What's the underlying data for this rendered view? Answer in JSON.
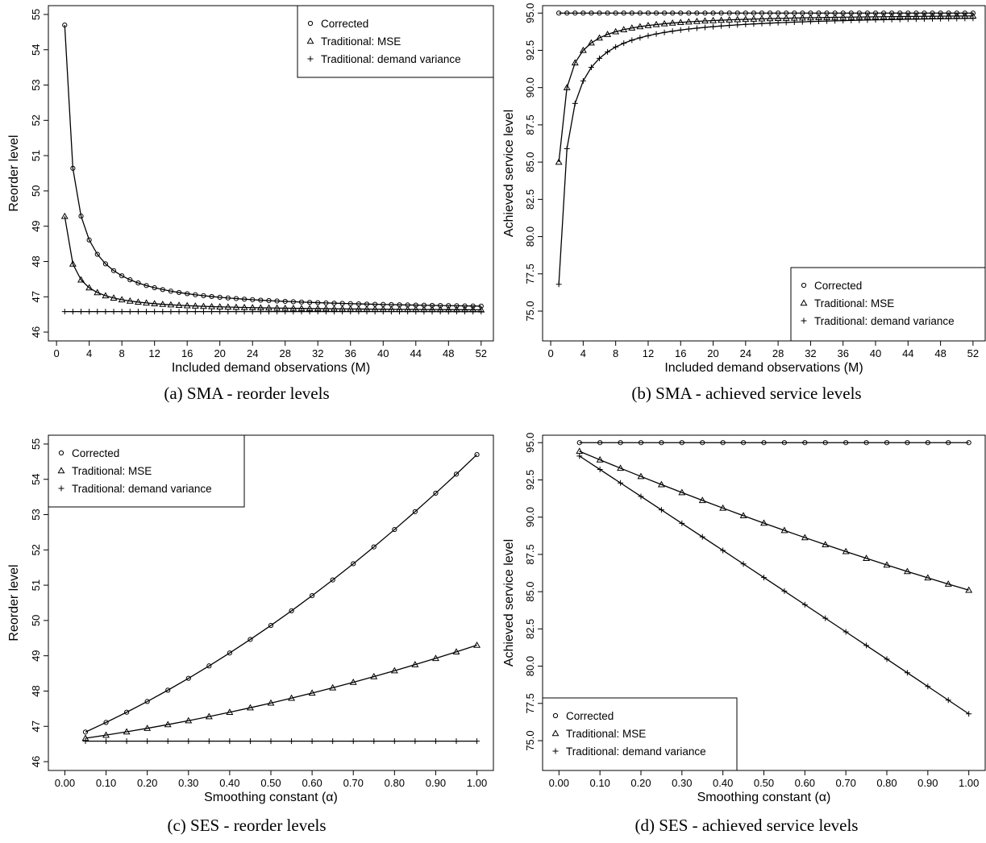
{
  "chart_data": [
    {
      "type": "line",
      "caption": "(a) SMA - reorder levels",
      "xlabel": "Included demand observations (M)",
      "ylabel": "Reorder level",
      "xlim": [
        -1,
        53.5
      ],
      "ylim": [
        45.75,
        55.25
      ],
      "xticks": [
        0,
        4,
        8,
        12,
        16,
        20,
        24,
        28,
        32,
        36,
        40,
        44,
        48,
        52
      ],
      "yticks": [
        46,
        47,
        48,
        49,
        50,
        51,
        52,
        53,
        54,
        55
      ],
      "legend_position": "top-right",
      "x_kind": "sma",
      "series": [
        {
          "name": "Corrected",
          "marker": "circle",
          "model": "sma",
          "p": [
            46.58,
            8.12,
            0
          ]
        },
        {
          "name": "Traditional: MSE",
          "marker": "triangle",
          "model": "sma",
          "p": [
            46.58,
            2.7,
            0
          ]
        },
        {
          "name": "Traditional: demand variance",
          "marker": "plus",
          "model": "sma",
          "p": [
            46.58,
            0,
            0
          ]
        }
      ]
    },
    {
      "type": "line",
      "caption": "(b) SMA - achieved service levels",
      "xlabel": "Included demand observations (M)",
      "ylabel": "Achieved service level",
      "xlim": [
        -1,
        53.5
      ],
      "ylim": [
        73.0,
        95.5
      ],
      "xticks": [
        0,
        4,
        8,
        12,
        16,
        20,
        24,
        28,
        32,
        36,
        40,
        44,
        48,
        52
      ],
      "yticks": [
        75.0,
        77.5,
        80.0,
        82.5,
        85.0,
        87.5,
        90.0,
        92.5,
        95.0
      ],
      "legend_position": "bottom-right",
      "x_kind": "sma",
      "series": [
        {
          "name": "Corrected",
          "marker": "circle",
          "model": "sma",
          "p": [
            95.0,
            0,
            0
          ]
        },
        {
          "name": "Traditional: MSE",
          "marker": "triangle",
          "model": "sma",
          "p": [
            95.0,
            -10.0,
            0
          ]
        },
        {
          "name": "Traditional: demand variance",
          "marker": "plus",
          "model": "sma",
          "p": [
            95.0,
            -18.2,
            0
          ]
        }
      ]
    },
    {
      "type": "line",
      "caption": "(c) SES - reorder levels",
      "xlabel": "Smoothing constant (α)",
      "ylabel": "Reorder level",
      "xlim": [
        -0.04,
        1.04
      ],
      "ylim": [
        45.75,
        55.25
      ],
      "xticks": [
        0.0,
        0.1,
        0.2,
        0.3,
        0.4,
        0.5,
        0.6,
        0.7,
        0.8,
        0.9,
        1.0
      ],
      "xtick_labels": [
        "0.00",
        "0.10",
        "0.20",
        "0.30",
        "0.40",
        "0.50",
        "0.60",
        "0.70",
        "0.80",
        "0.90",
        "1.00"
      ],
      "yticks": [
        46,
        47,
        48,
        49,
        50,
        51,
        52,
        53,
        54,
        55
      ],
      "legend_position": "top-left",
      "x_kind": "ses",
      "series": [
        {
          "name": "Corrected",
          "marker": "circle",
          "model": "quad",
          "p": [
            46.58,
            5.0,
            3.12
          ]
        },
        {
          "name": "Traditional: MSE",
          "marker": "triangle",
          "model": "quad",
          "p": [
            46.58,
            1.6,
            1.12
          ]
        },
        {
          "name": "Traditional: demand variance",
          "marker": "plus",
          "model": "quad",
          "p": [
            46.58,
            0,
            0
          ]
        }
      ]
    },
    {
      "type": "line",
      "caption": "(d) SES - achieved service levels",
      "xlabel": "Smoothing constant (α)",
      "ylabel": "Achieved service level",
      "xlim": [
        -0.04,
        1.04
      ],
      "ylim": [
        73.0,
        95.5
      ],
      "xticks": [
        0.0,
        0.1,
        0.2,
        0.3,
        0.4,
        0.5,
        0.6,
        0.7,
        0.8,
        0.9,
        1.0
      ],
      "xtick_labels": [
        "0.00",
        "0.10",
        "0.20",
        "0.30",
        "0.40",
        "0.50",
        "0.60",
        "0.70",
        "0.80",
        "0.90",
        "1.00"
      ],
      "yticks": [
        75.0,
        77.5,
        80.0,
        82.5,
        85.0,
        87.5,
        90.0,
        92.5,
        95.0
      ],
      "legend_position": "bottom-left",
      "x_kind": "ses",
      "series": [
        {
          "name": "Corrected",
          "marker": "circle",
          "model": "quad",
          "p": [
            95.0,
            0,
            0
          ]
        },
        {
          "name": "Traditional: MSE",
          "marker": "triangle",
          "model": "quad",
          "p": [
            95.0,
            -11.7,
            1.8
          ]
        },
        {
          "name": "Traditional: demand variance",
          "marker": "plus",
          "model": "quad",
          "p": [
            95.0,
            -18.0,
            -0.2
          ]
        }
      ]
    }
  ]
}
